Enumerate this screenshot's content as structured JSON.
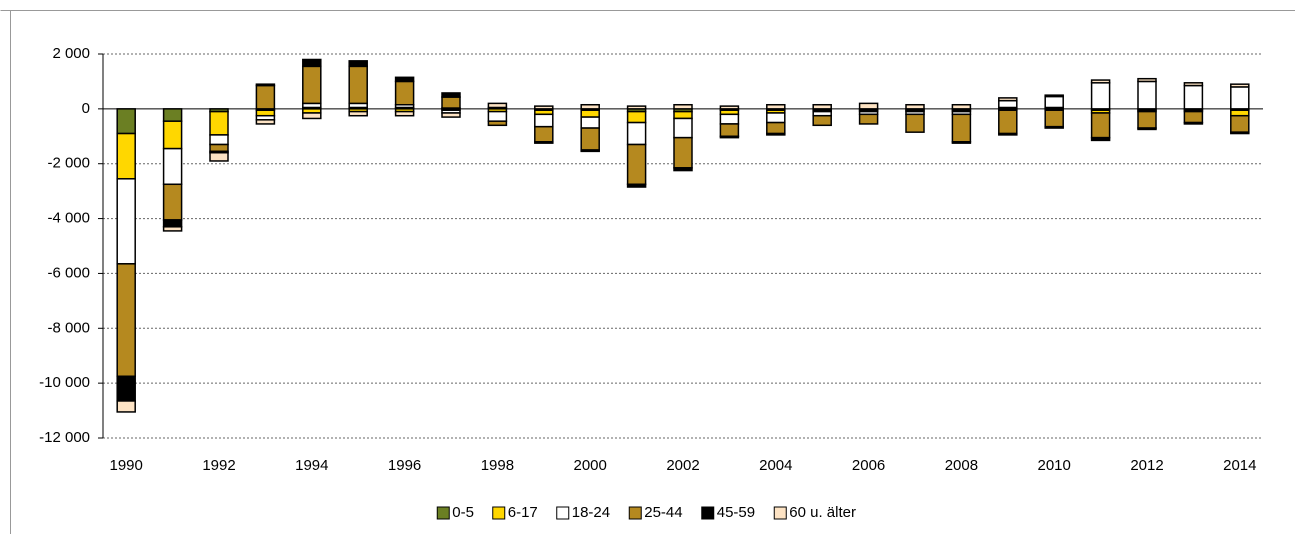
{
  "chart_data": {
    "type": "bar",
    "stacked": true,
    "categories": [
      "1990",
      null,
      "1992",
      null,
      "1994",
      null,
      "1996",
      null,
      "1998",
      null,
      "2000",
      null,
      "2002",
      null,
      "2004",
      null,
      "2006",
      null,
      "2008",
      null,
      "2010",
      null,
      "2012",
      null,
      "2014"
    ],
    "series": [
      {
        "name": "0-5",
        "color": "#6b7f23",
        "values": [
          -900,
          -450,
          -100,
          -50,
          50,
          50,
          50,
          30,
          50,
          -50,
          -50,
          -100,
          -100,
          -50,
          -50,
          -50,
          -50,
          -50,
          -50,
          50,
          50,
          -50,
          -50,
          -50,
          -50
        ]
      },
      {
        "name": "6-17",
        "color": "#ffd700",
        "values": [
          -1650,
          -1000,
          -850,
          -200,
          -150,
          -100,
          -100,
          -50,
          -100,
          -150,
          -250,
          -400,
          -250,
          -150,
          -100,
          -50,
          -50,
          -50,
          -50,
          -50,
          -50,
          -100,
          -50,
          -50,
          -200
        ]
      },
      {
        "name": "18-24",
        "color": "#ffffff",
        "values": [
          -3100,
          -1300,
          -350,
          -150,
          150,
          150,
          100,
          -100,
          -350,
          -450,
          -400,
          -800,
          -700,
          -350,
          -350,
          -150,
          -100,
          -100,
          -100,
          250,
          400,
          950,
          1000,
          850,
          800
        ]
      },
      {
        "name": "25-44",
        "color": "#b5891f",
        "values": [
          -4100,
          -1300,
          -250,
          850,
          1350,
          1350,
          850,
          400,
          -150,
          -550,
          -800,
          -1450,
          -1100,
          -450,
          -400,
          -350,
          -350,
          -650,
          -1000,
          -850,
          -600,
          -900,
          -600,
          -400,
          -600
        ]
      },
      {
        "name": "45-59",
        "color": "#000000",
        "values": [
          -900,
          -250,
          -50,
          50,
          250,
          200,
          150,
          150,
          0,
          -50,
          -50,
          -100,
          -100,
          -50,
          -50,
          0,
          0,
          0,
          -50,
          -50,
          -50,
          -100,
          -50,
          -50,
          -50
        ]
      },
      {
        "name": "60 u. älter",
        "color": "#fde3c4",
        "values": [
          -400,
          -150,
          -300,
          -150,
          -200,
          -150,
          -150,
          -150,
          150,
          100,
          150,
          100,
          150,
          100,
          150,
          150,
          200,
          150,
          150,
          100,
          50,
          100,
          100,
          100,
          100
        ]
      }
    ],
    "ylim": [
      -12000,
      2000
    ],
    "yticks": [
      {
        "value": -12000,
        "label": "-12 000"
      },
      {
        "value": -10000,
        "label": "-10 000"
      },
      {
        "value": -8000,
        "label": "-8 000"
      },
      {
        "value": -6000,
        "label": "-6 000"
      },
      {
        "value": -4000,
        "label": "-4 000"
      },
      {
        "value": -2000,
        "label": "-2 000"
      },
      0,
      {
        "value": 2000,
        "label": "2 000"
      }
    ],
    "grid": true,
    "legend": "bottom"
  }
}
